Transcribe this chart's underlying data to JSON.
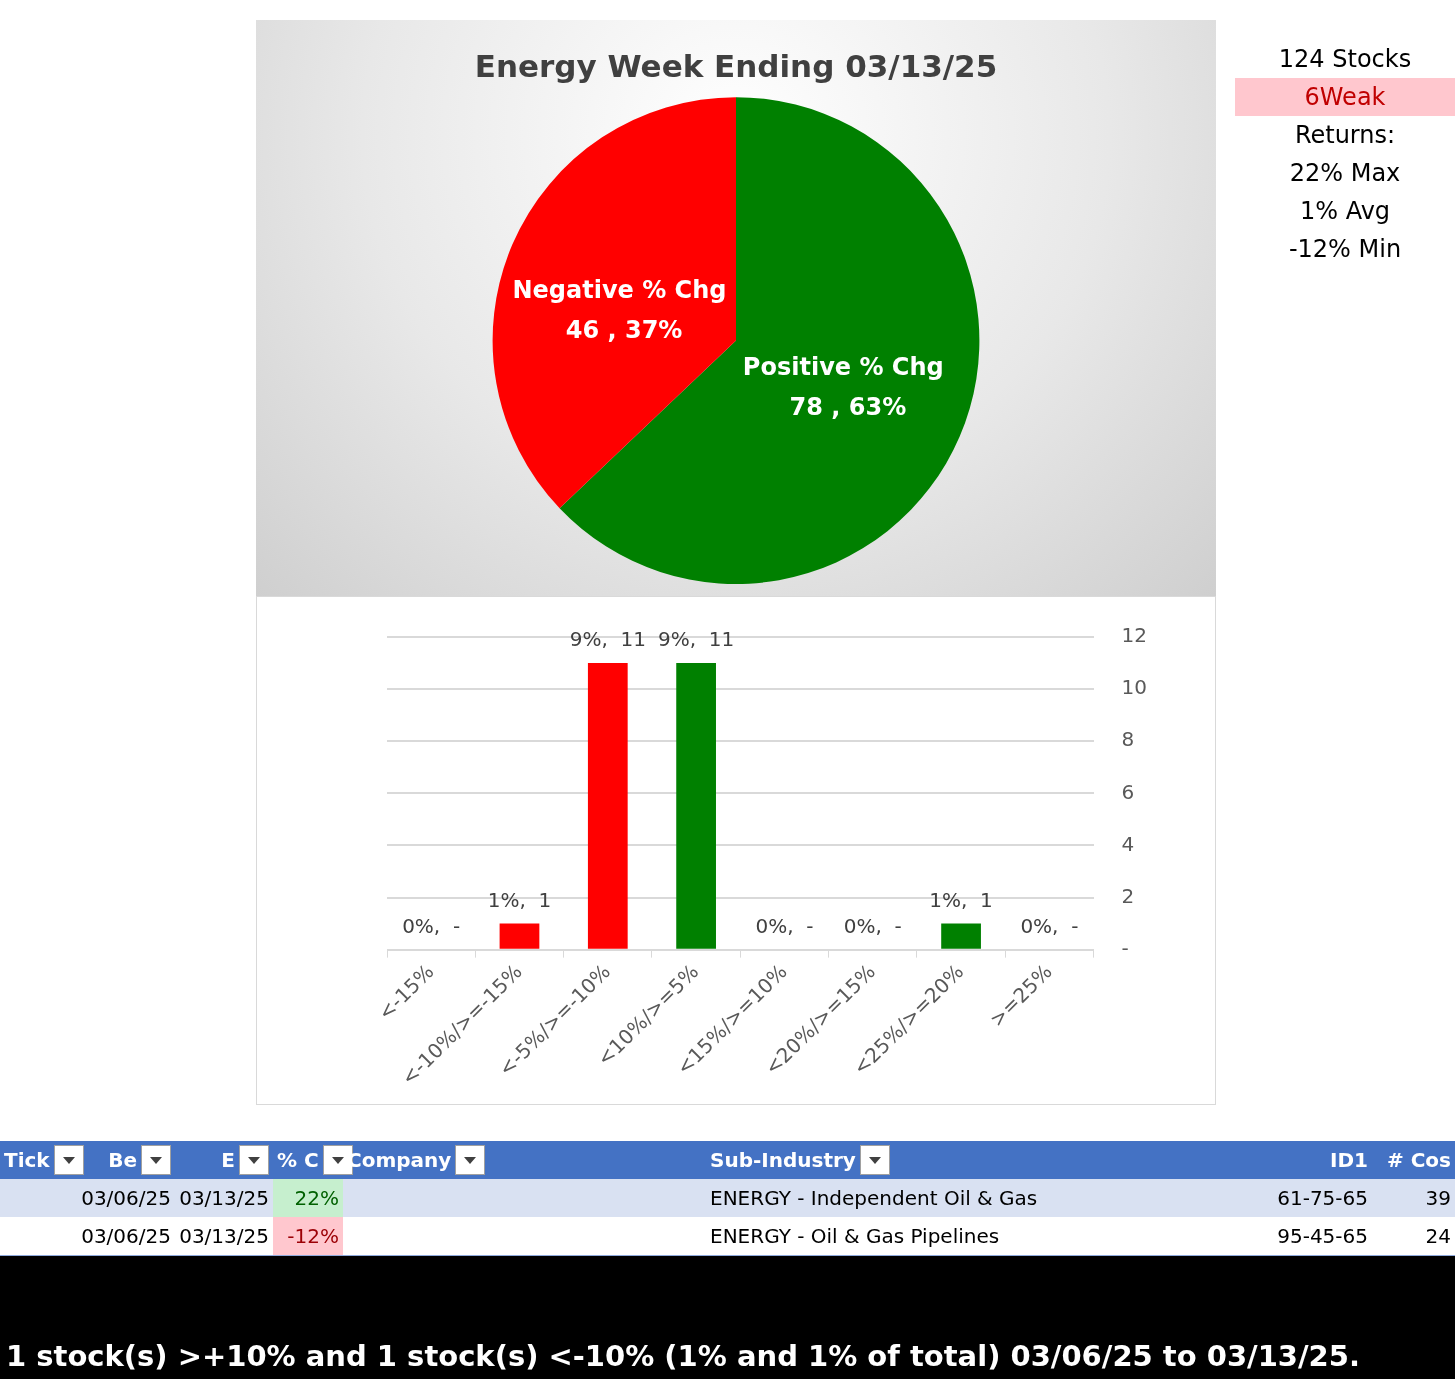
{
  "chart_data": [
    {
      "type": "pie",
      "title": "Energy Week Ending 03/13/25",
      "categories": [
        "Positive % Chg",
        "Negative % Chg"
      ],
      "values": [
        78,
        46
      ],
      "colors": [
        "#008000",
        "#ff0000"
      ],
      "value_labels": [
        "78 , 63%",
        "46 , 37%"
      ]
    },
    {
      "type": "bar",
      "categories": [
        "<-15%",
        "<-10%/>=-15%",
        "<-5%/>=-10%",
        "<10%/>=5%",
        "<15%/>=10%",
        "<20%/>=15%",
        "<25%/>=20%",
        ">=25%"
      ],
      "values": [
        0,
        1,
        11,
        11,
        0,
        0,
        1,
        0
      ],
      "colors": [
        "#ff0000",
        "#ff0000",
        "#ff0000",
        "#008000",
        "#008000",
        "#008000",
        "#008000",
        "#008000"
      ],
      "value_labels": [
        "0%,  -",
        "1%,  1",
        "9%,  11",
        "9%,  11",
        "0%,  -",
        "0%,  -",
        "1%,  1",
        "0%,  -"
      ],
      "ylim": [
        0,
        12
      ],
      "yticks": [
        {
          "value": 0,
          "label": "-"
        },
        2,
        4,
        6,
        8,
        10,
        12
      ],
      "grid": "y"
    },
    {
      "type": "other",
      "annotations": [
        "124 Stocks",
        "6Weak",
        "Returns:",
        "22% Max",
        "1% Avg",
        "-12% Min"
      ]
    },
    {
      "type": "other",
      "categories": [
        "Tick",
        "Be",
        "E",
        "% C",
        "Company",
        "Sub-Industry",
        "ID1",
        "# Cos"
      ],
      "cell_labels": [
        [
          null,
          "03/06/25",
          "03/13/25",
          "22%",
          null,
          "ENERGY - Independent Oil & Gas",
          "61-75-65",
          "39"
        ],
        [
          null,
          "03/06/25",
          "03/13/25",
          "-12%",
          null,
          "ENERGY - Oil & Gas Pipelines",
          "95-45-65",
          "24"
        ]
      ],
      "annotations": [
        "1 stock(s) >+10% and 1 stock(s) <-10% (1% and 1% of total) 03/06/25 to 03/13/25."
      ]
    }
  ]
}
